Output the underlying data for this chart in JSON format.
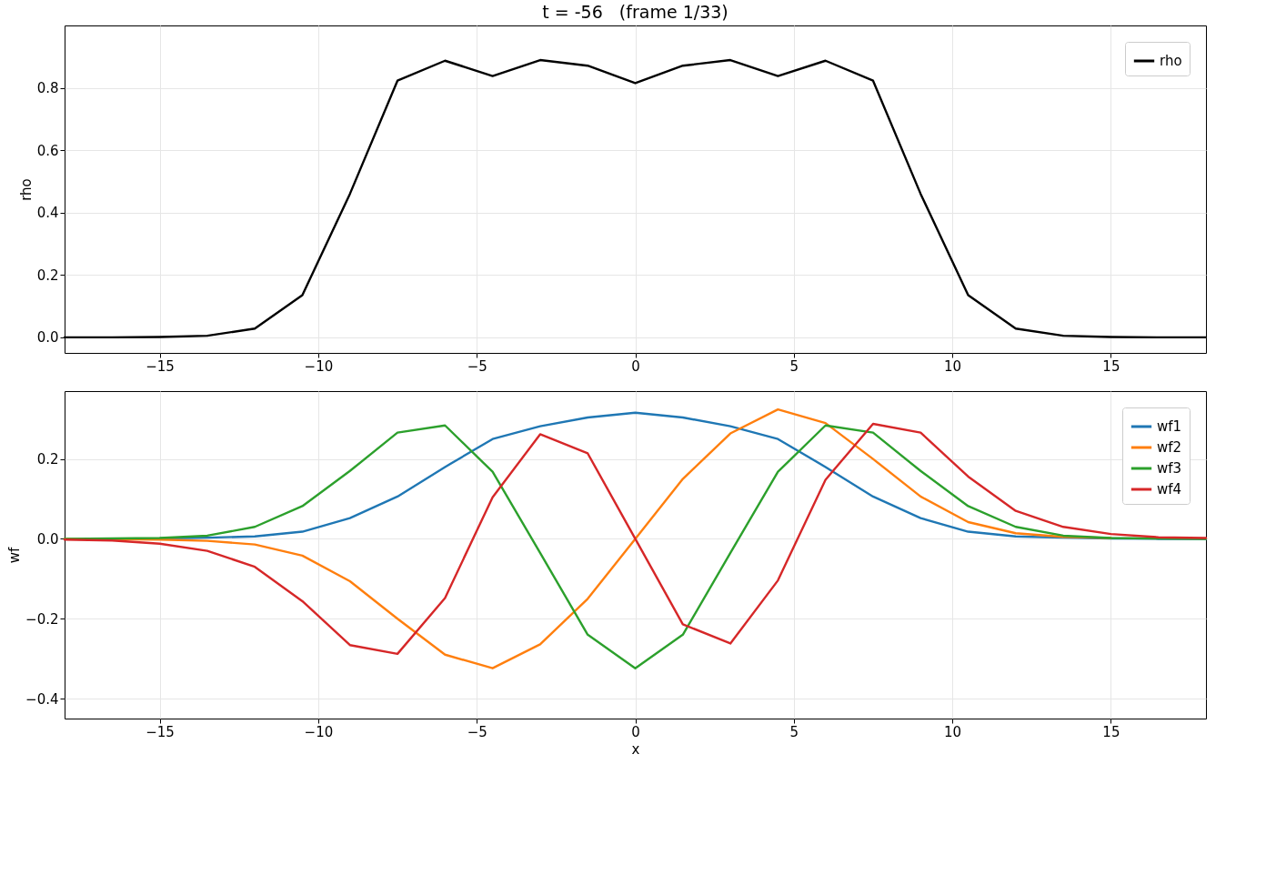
{
  "chart_data": [
    {
      "type": "line",
      "title": "t = -56   (frame 1/33)",
      "ylabel": "rho",
      "x": [
        -18,
        -16.5,
        -15,
        -13.5,
        -12,
        -10.5,
        -9,
        -7.5,
        -6,
        -4.5,
        -3,
        -1.5,
        0,
        1.5,
        3,
        4.5,
        6,
        7.5,
        9,
        10.5,
        12,
        13.5,
        15,
        16.5,
        18
      ],
      "series": [
        {
          "name": "rho",
          "color": "#000000",
          "values": [
            0,
            0,
            0.001,
            0.005,
            0.028,
            0.135,
            0.46,
            0.823,
            0.887,
            0.838,
            0.889,
            0.871,
            0.815,
            0.871,
            0.889,
            0.838,
            0.887,
            0.823,
            0.46,
            0.135,
            0.028,
            0.005,
            0.001,
            0,
            0
          ]
        }
      ],
      "xlim": [
        -18,
        18
      ],
      "ylim": [
        -0.05,
        1.0
      ],
      "xticks": [
        {
          "value": -15,
          "label": "−15"
        },
        {
          "value": -10,
          "label": "−10"
        },
        {
          "value": -5,
          "label": "−5"
        },
        0,
        5,
        10,
        15
      ],
      "yticks": [
        {
          "value": 0,
          "label": "0.0"
        },
        0.2,
        0.4,
        0.6,
        0.8
      ],
      "grid": true,
      "legend": "top right"
    },
    {
      "type": "line",
      "xlabel": "x",
      "ylabel": "wf",
      "x": [
        -18,
        -16.5,
        -15,
        -13.5,
        -12,
        -10.5,
        -9,
        -7.5,
        -6,
        -4.5,
        -3,
        -1.5,
        0,
        1.5,
        3,
        4.5,
        6,
        7.5,
        9,
        10.5,
        12,
        13.5,
        15,
        16.5,
        18
      ],
      "series": [
        {
          "name": "wf1",
          "color": "#1f77b4",
          "values": [
            null,
            null,
            0.001,
            0.003,
            0.006,
            0.018,
            0.052,
            0.106,
            0.18,
            0.25,
            0.282,
            0.304,
            0.316,
            0.304,
            0.282,
            0.25,
            0.18,
            0.106,
            0.052,
            0.018,
            0.006,
            0.003,
            0.001,
            0,
            0
          ]
        },
        {
          "name": "wf2",
          "color": "#ff7f0e",
          "values": [
            0,
            -0.001,
            -0.002,
            -0.005,
            -0.014,
            -0.042,
            -0.106,
            -0.2,
            -0.29,
            -0.324,
            -0.264,
            -0.15,
            0,
            0.15,
            0.264,
            0.324,
            0.29,
            0.2,
            0.106,
            0.042,
            0.014,
            0.005,
            0.002,
            null,
            null
          ]
        },
        {
          "name": "wf3",
          "color": "#2ca02c",
          "values": [
            0,
            0.001,
            0.002,
            0.008,
            0.03,
            0.082,
            0.17,
            0.266,
            0.284,
            0.168,
            -0.035,
            -0.24,
            -0.324,
            -0.24,
            -0.035,
            0.168,
            0.284,
            0.266,
            0.17,
            0.082,
            0.03,
            0.008,
            0.002,
            0.001,
            0
          ]
        },
        {
          "name": "wf4",
          "color": "#d62728",
          "values": [
            -0.002,
            -0.004,
            -0.012,
            -0.03,
            -0.07,
            -0.156,
            -0.266,
            -0.288,
            -0.148,
            0.104,
            0.262,
            0.214,
            0,
            -0.214,
            -0.262,
            -0.104,
            0.148,
            0.288,
            0.266,
            0.156,
            0.07,
            0.03,
            0.012,
            0.004,
            0.002
          ]
        }
      ],
      "xlim": [
        -18,
        18
      ],
      "ylim": [
        -0.45,
        0.37
      ],
      "xticks": [
        {
          "value": -15,
          "label": "−15"
        },
        {
          "value": -10,
          "label": "−10"
        },
        {
          "value": -5,
          "label": "−5"
        },
        0,
        5,
        10,
        15
      ],
      "yticks": [
        {
          "value": -0.4,
          "label": "−0.4"
        },
        {
          "value": -0.2,
          "label": "−0.2"
        },
        {
          "value": 0,
          "label": "0.0"
        },
        0.2
      ],
      "grid": true,
      "legend": "top right"
    }
  ]
}
